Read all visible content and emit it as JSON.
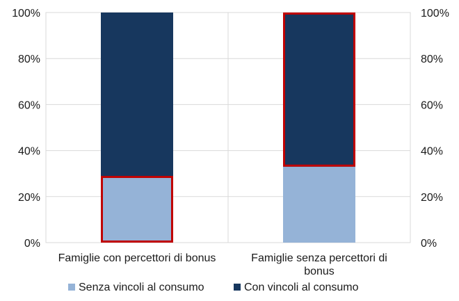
{
  "chart_data": {
    "type": "bar",
    "stacked": true,
    "categories": [
      [
        "Famiglie con percettori di bonus"
      ],
      [
        "Famiglie senza percettori di",
        "bonus"
      ]
    ],
    "series": [
      {
        "name": "Senza vincoli al consumo",
        "color": "#95b3d7",
        "values": [
          29,
          33
        ]
      },
      {
        "name": "Con vincoli al consumo",
        "color": "#17375e",
        "values": [
          71,
          67
        ]
      }
    ],
    "highlight": {
      "color": "#c00000",
      "segments": [
        [
          0,
          0
        ],
        [
          1,
          1
        ]
      ]
    },
    "ylim": [
      0,
      100
    ],
    "yticks": [
      "0%",
      "20%",
      "40%",
      "60%",
      "80%",
      "100%"
    ],
    "secondary_yticks": [
      "0%",
      "20%",
      "40%",
      "60%",
      "80%",
      "100%"
    ],
    "grid": true,
    "legend_position": "bottom"
  }
}
